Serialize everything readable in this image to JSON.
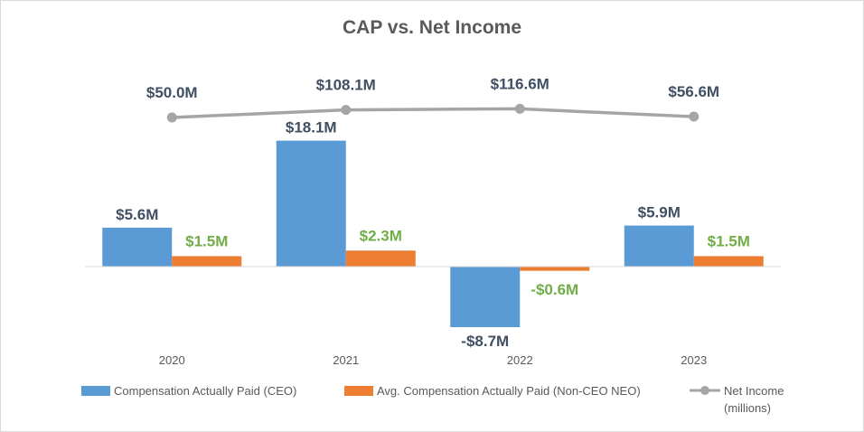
{
  "chart_data": {
    "type": "bar",
    "title": "CAP vs. Net Income",
    "categories": [
      "2020",
      "2021",
      "2022",
      "2023"
    ],
    "series": [
      {
        "name": "Compensation Actually Paid (CEO)",
        "kind": "bar",
        "color": "#5b9bd5",
        "values": [
          5.6,
          18.1,
          -8.7,
          5.9
        ],
        "labels": [
          "$5.6M",
          "$18.1M",
          "-$8.7M",
          "$5.9M"
        ]
      },
      {
        "name": "Avg. Compensation Actually Paid (Non-CEO NEO)",
        "kind": "bar",
        "color": "#ed7d31",
        "label_color": "#70ad47",
        "values": [
          1.5,
          2.3,
          -0.6,
          1.5
        ],
        "labels": [
          "$1.5M",
          "$2.3M",
          "-$0.6M",
          "$1.5M"
        ]
      },
      {
        "name": "Net Income",
        "name_line2": "(millions)",
        "kind": "line",
        "color": "#a5a5a5",
        "values": [
          50.0,
          108.1,
          116.6,
          56.6
        ],
        "labels": [
          "$50.0M",
          "$108.1M",
          "$116.6M",
          "$56.6M"
        ]
      }
    ],
    "xlabel": "",
    "ylabel": "",
    "grid": false,
    "legend": "bottom"
  }
}
